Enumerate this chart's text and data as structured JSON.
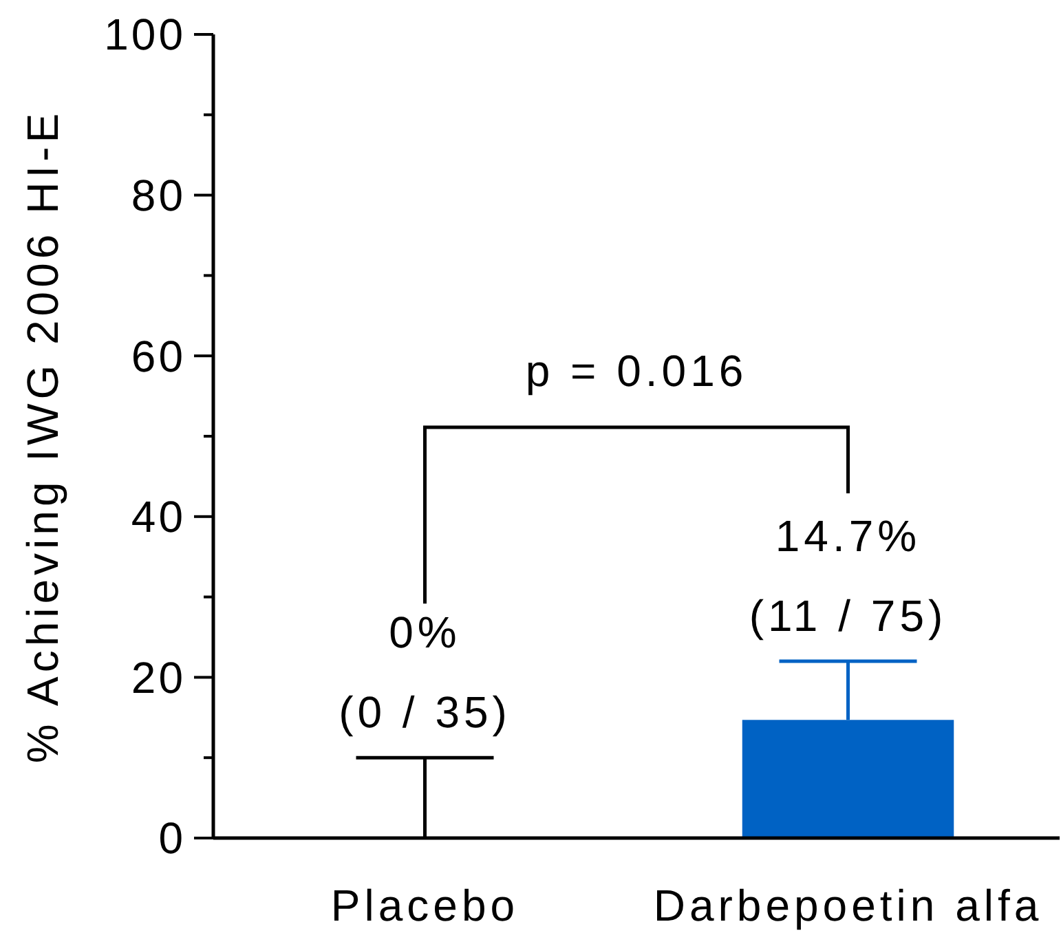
{
  "chart_data": {
    "type": "bar",
    "ylabel": "% Achieving IWG 2006 HI-E",
    "categories": [
      "Placebo",
      "Darbepoetin alfa"
    ],
    "values": [
      0,
      14.7
    ],
    "colors": [
      "#000000",
      "#0062c4"
    ],
    "errors": [
      [
        0,
        10
      ],
      [
        14.7,
        22
      ]
    ],
    "value_labels": [
      "0%\n(0 / 35)",
      "14.7%\n(11 / 75)"
    ],
    "annotations": [
      "p = 0.016"
    ],
    "ylim": [
      0,
      100
    ],
    "yticks": [
      0,
      {
        "value": 10,
        "label": null
      },
      20,
      {
        "value": 30,
        "label": null
      },
      40,
      {
        "value": 50,
        "label": null
      },
      60,
      {
        "value": 70,
        "label": null
      },
      80,
      {
        "value": 90,
        "label": null
      },
      100
    ],
    "grid": false
  }
}
